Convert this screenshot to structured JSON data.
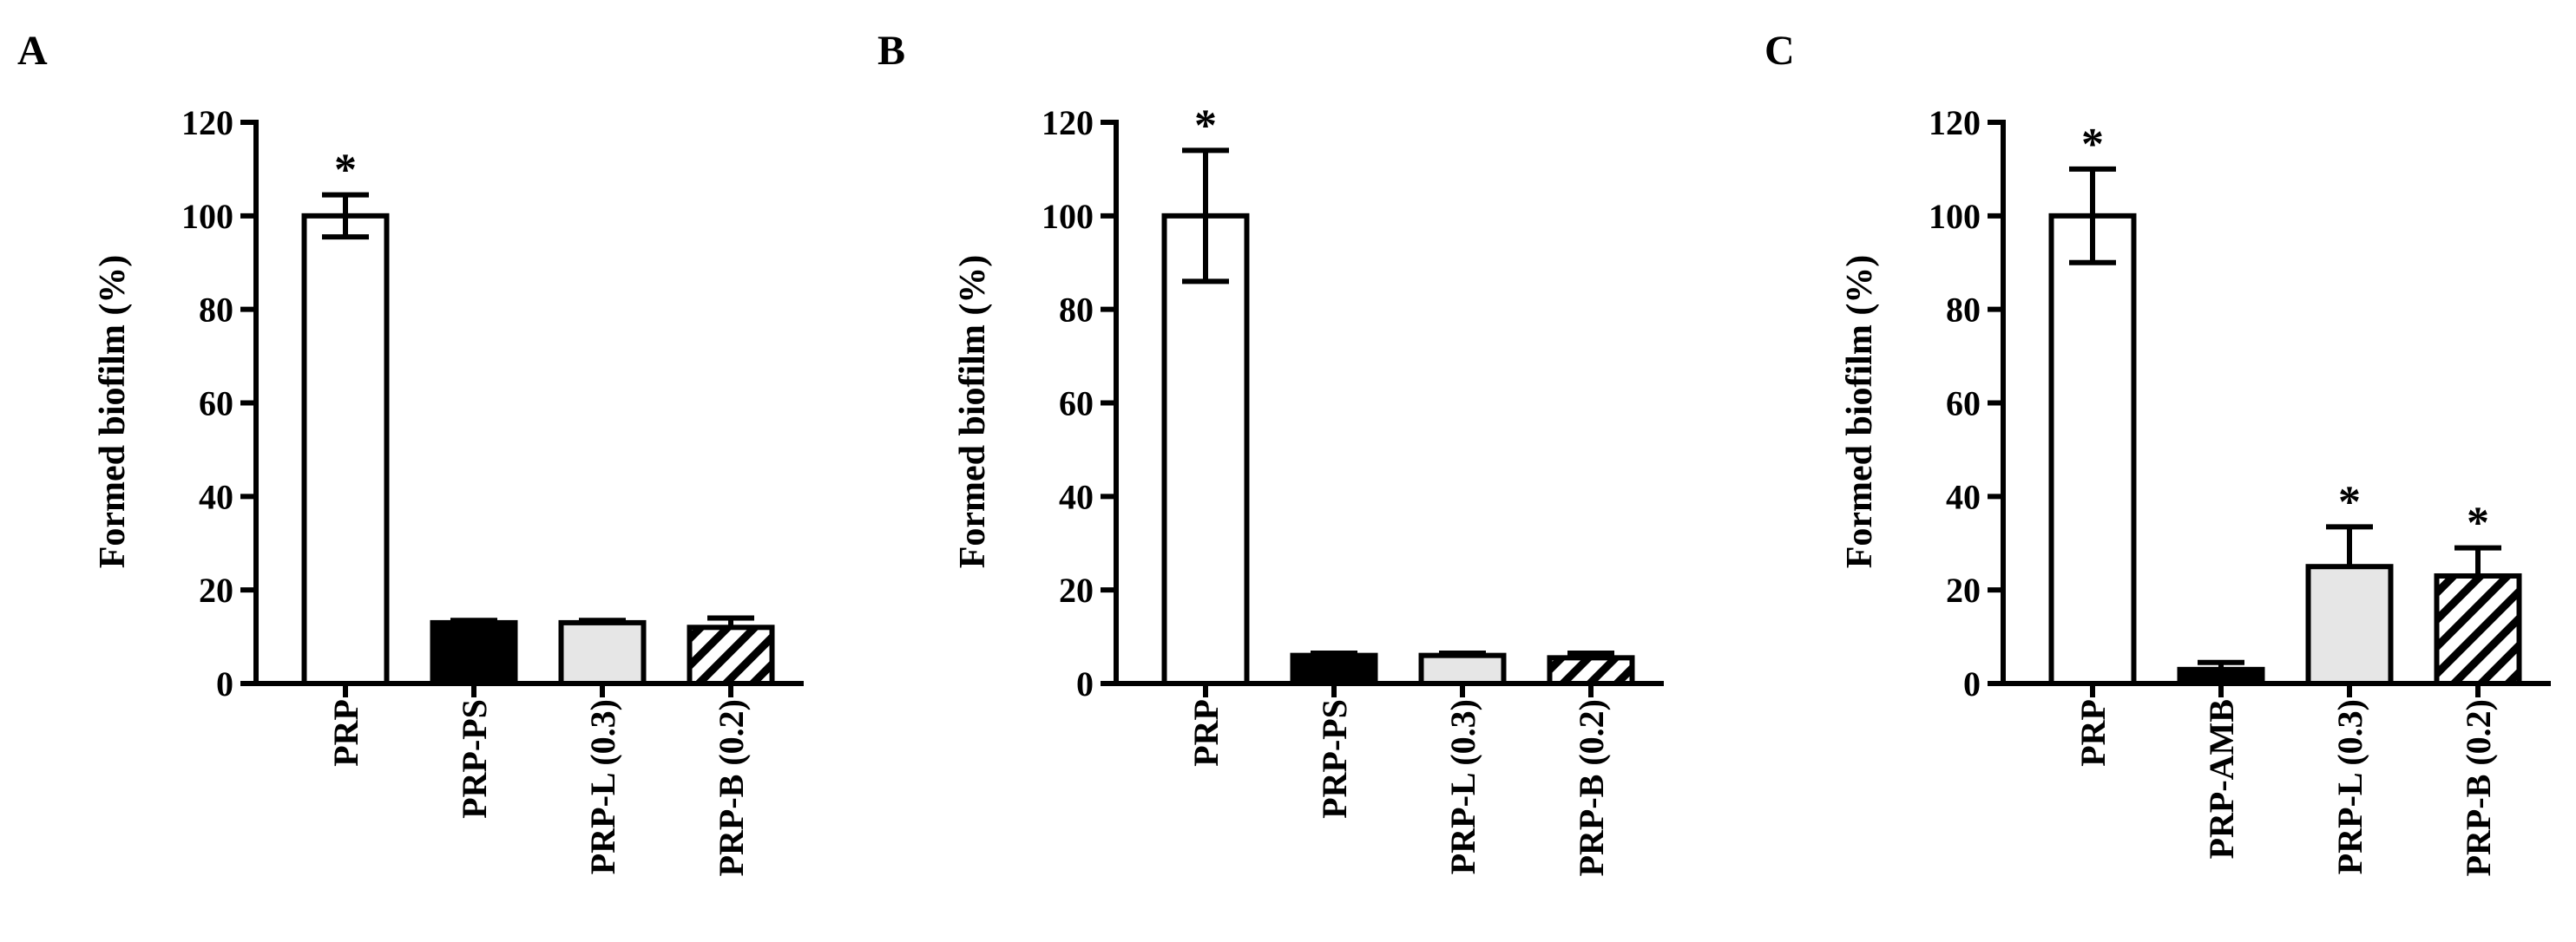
{
  "chart_data": [
    {
      "type": "bar",
      "panel": "A",
      "y_label": "Formed biofilm (%)",
      "categories": [
        "PRP",
        "PRP-PS",
        "PRP-L (0.3)",
        "PRP-B (0.2)"
      ],
      "values": [
        100,
        13,
        13,
        12
      ],
      "errors": [
        4.5,
        0.5,
        0.5,
        2
      ],
      "markers": [
        "*",
        null,
        null,
        null
      ],
      "colors": [
        "#ffffff",
        "#000000",
        "#e6e6e6",
        "hatch"
      ],
      "ylim": [
        0,
        120
      ],
      "yticks": [
        0,
        20,
        40,
        60,
        80,
        100,
        120
      ]
    },
    {
      "type": "bar",
      "panel": "B",
      "y_label": "Formed biofilm (%)",
      "categories": [
        "PRP",
        "PRP-PS",
        "PRP-L (0.3)",
        "PRP-B (0.2)"
      ],
      "values": [
        100,
        6,
        6,
        5.5
      ],
      "errors": [
        14,
        0.5,
        0.5,
        1
      ],
      "markers": [
        "*",
        null,
        null,
        null
      ],
      "colors": [
        "#ffffff",
        "#000000",
        "#e6e6e6",
        "hatch"
      ],
      "ylim": [
        0,
        120
      ],
      "yticks": [
        0,
        20,
        40,
        60,
        80,
        100,
        120
      ]
    },
    {
      "type": "bar",
      "panel": "C",
      "y_label": "Formed biofilm (%)",
      "categories": [
        "PRP",
        "PRP-AMB",
        "PRP-L (0.3)",
        "PRP-B (0.2)"
      ],
      "values": [
        100,
        3,
        25,
        23
      ],
      "errors": [
        10,
        1.5,
        8.5,
        6
      ],
      "markers": [
        "*",
        null,
        "*",
        "*"
      ],
      "colors": [
        "#ffffff",
        "#000000",
        "#e6e6e6",
        "hatch"
      ],
      "ylim": [
        0,
        120
      ],
      "yticks": [
        0,
        20,
        40,
        60,
        80,
        100,
        120
      ]
    }
  ]
}
